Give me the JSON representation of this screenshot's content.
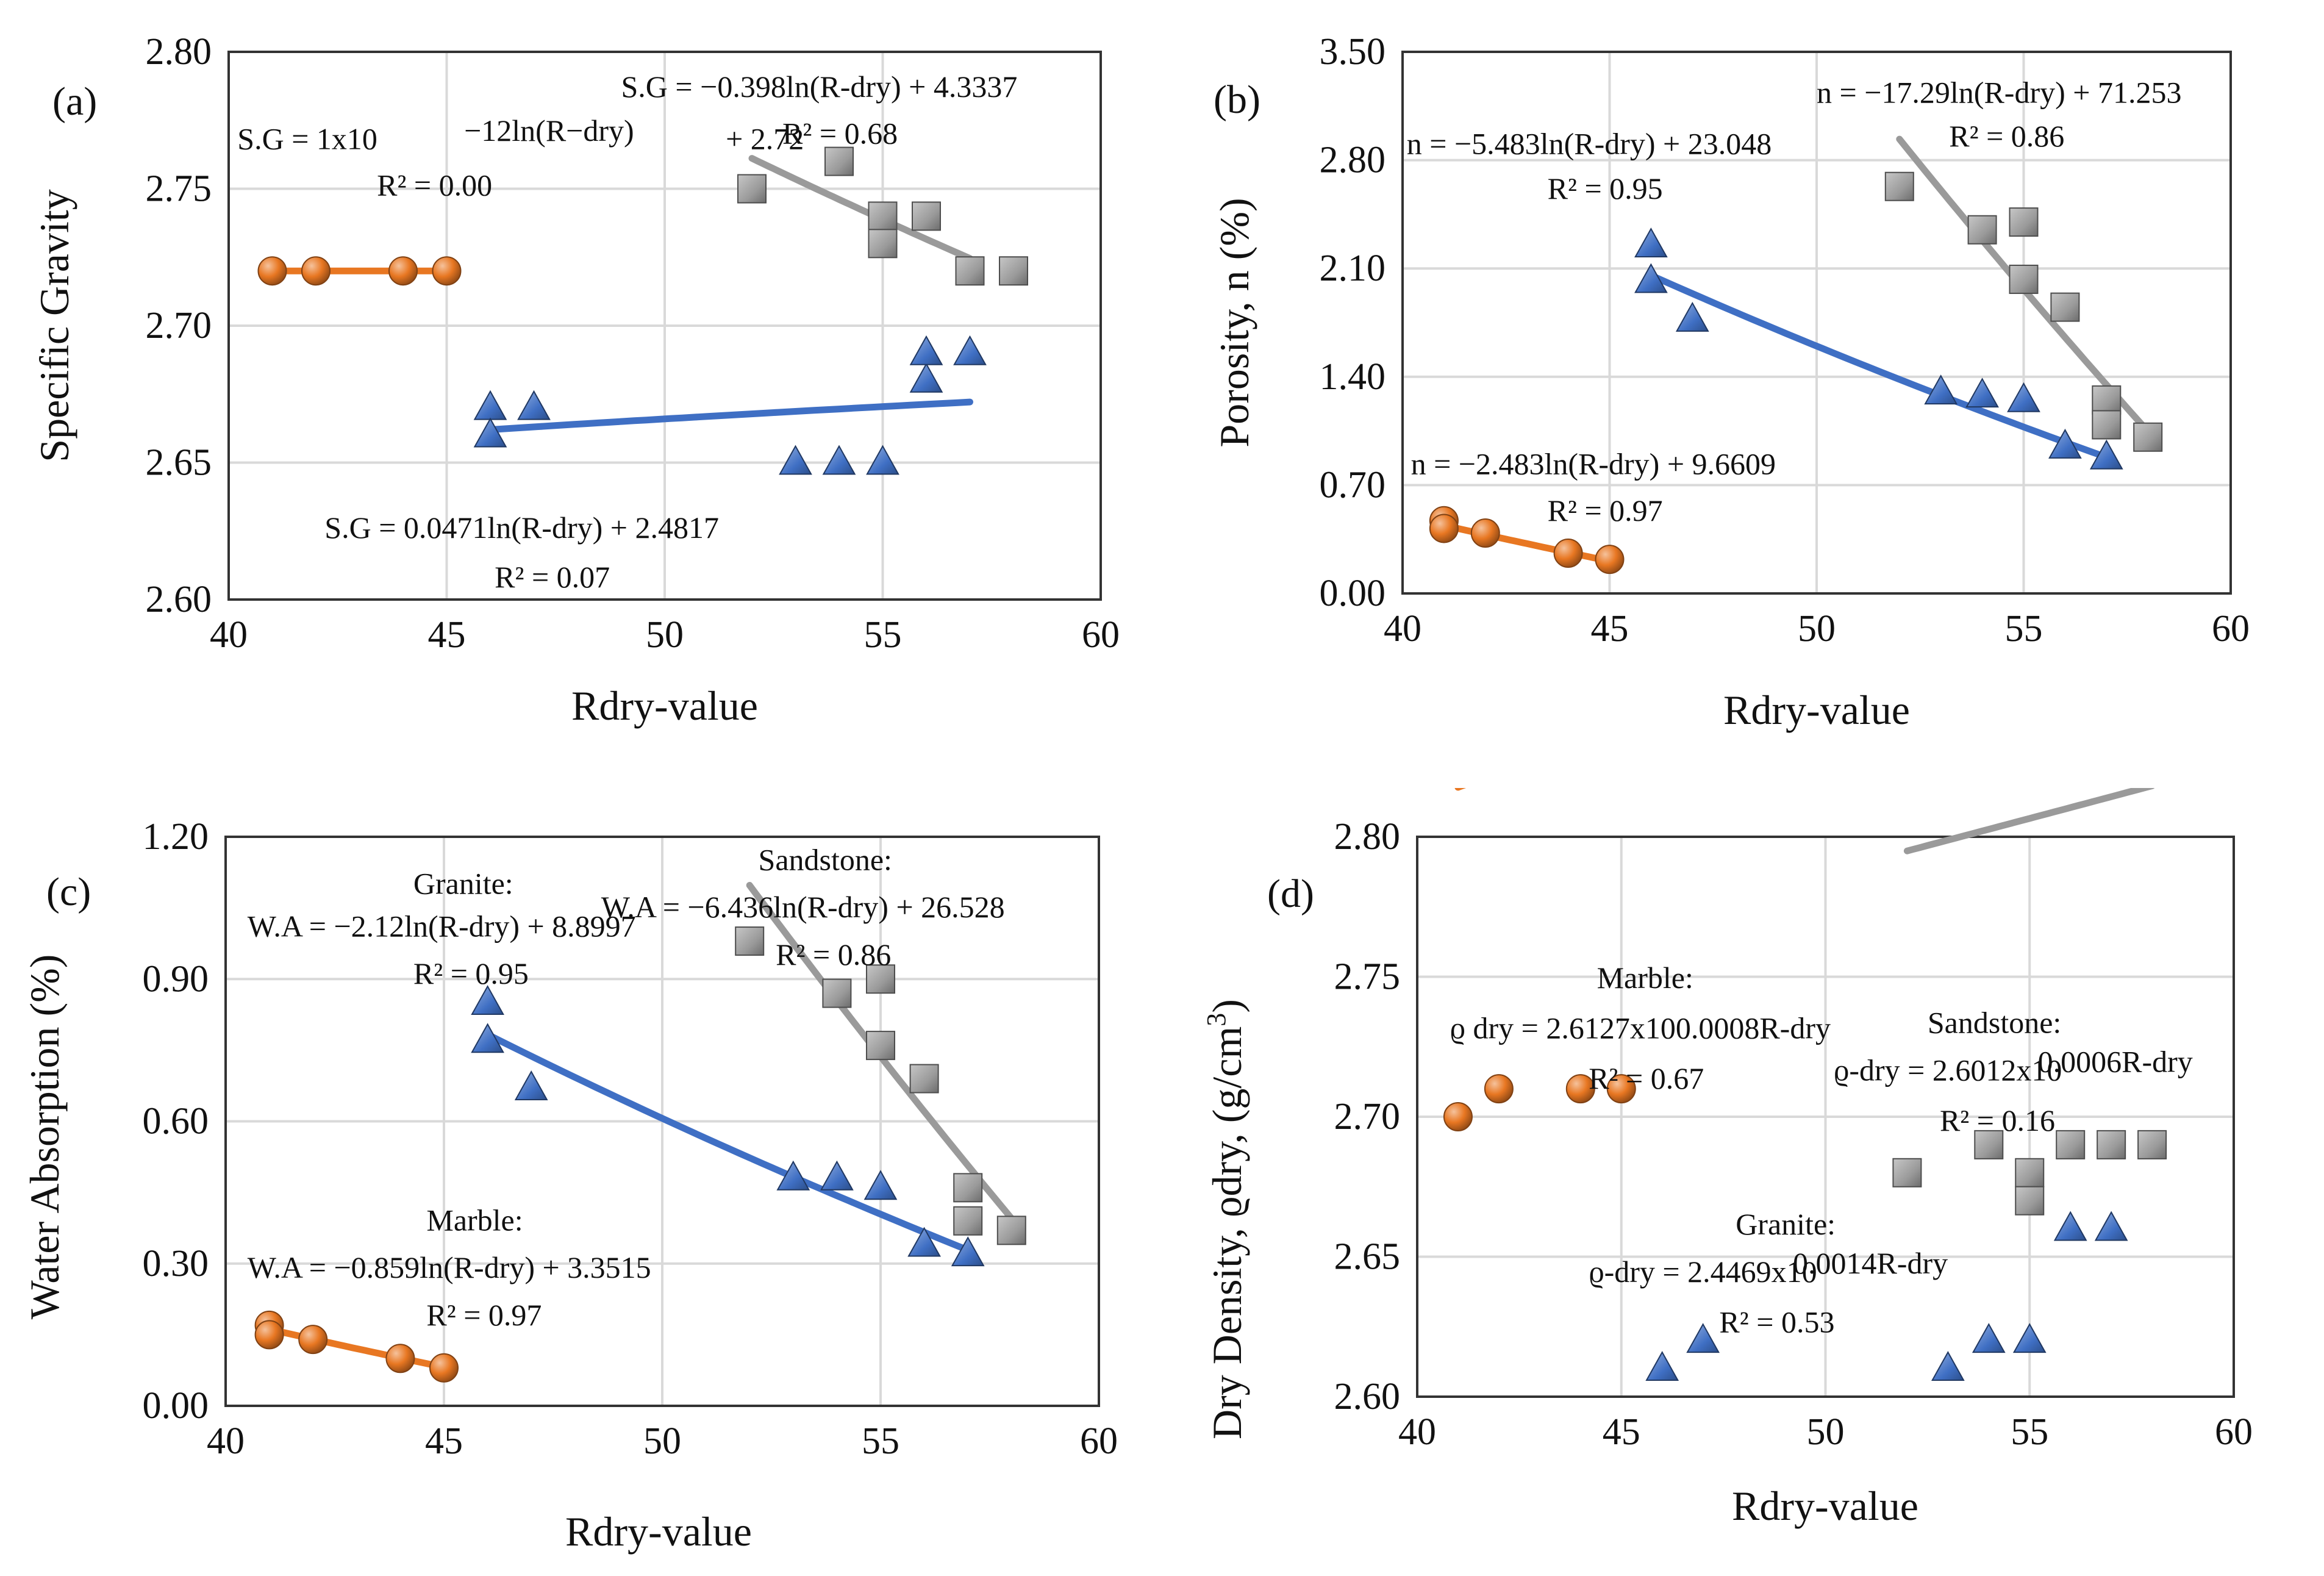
{
  "colors": {
    "marble": "#e87722",
    "granite": "#3f6fc4",
    "sandstone": "#9a9a9a",
    "grid": "#d9d9d9"
  },
  "chart_data": [
    {
      "id": "a",
      "type": "scatter",
      "panel_label": "(a)",
      "xlabel": "Rdry-value",
      "ylabel": "Specific Gravity",
      "xlim": [
        40,
        60
      ],
      "ylim": [
        2.6,
        2.8
      ],
      "xticks": [
        "40",
        "45",
        "50",
        "55",
        "60"
      ],
      "yticks": [
        "2.60",
        "2.65",
        "2.70",
        "2.75",
        "2.80"
      ],
      "series": [
        {
          "name": "Marble",
          "marker": "sphere",
          "x": [
            41,
            42,
            44,
            45
          ],
          "y": [
            2.72,
            2.72,
            2.72,
            2.72
          ],
          "trend": {
            "kind": "log",
            "a": 0,
            "b": 2.72,
            "x0": 41,
            "x1": 45
          }
        },
        {
          "name": "Granite",
          "marker": "triangle",
          "x": [
            46,
            46,
            47,
            53,
            54,
            55,
            56,
            56,
            57
          ],
          "y": [
            2.67,
            2.66,
            2.67,
            2.65,
            2.65,
            2.65,
            2.68,
            2.69,
            2.69
          ],
          "trend": {
            "kind": "log",
            "a": 0.0471,
            "b": 2.4817,
            "x0": 46,
            "x1": 57
          }
        },
        {
          "name": "Sandstone",
          "marker": "square",
          "x": [
            52,
            54,
            55,
            55,
            56,
            57,
            58
          ],
          "y": [
            2.75,
            2.76,
            2.74,
            2.73,
            2.74,
            2.72,
            2.72
          ],
          "trend": {
            "kind": "log",
            "a": -0.398,
            "b": 4.3337,
            "x0": 52,
            "x1": 57
          }
        }
      ],
      "annotations": [
        {
          "id": "m_eq_pre",
          "text": "S.G = 1x10",
          "x": 40.2,
          "y": 2.7645
        },
        {
          "id": "m_eq_sup",
          "text": "−12ln(R−dry)",
          "x": 45.4,
          "y": 2.7675
        },
        {
          "id": "m_eq_post",
          "text": " + 2.72",
          "x": 51.4,
          "y": 2.7645
        },
        {
          "id": "m_r2",
          "text": "R² = 0.00",
          "x": 43.4,
          "y": 2.7475
        },
        {
          "id": "s_eq",
          "text": "S.G = −0.398ln(R-dry) + 4.3337",
          "x": 49.0,
          "y": 2.7835
        },
        {
          "id": "s_r2",
          "text": "R² = 0.68",
          "x": 52.7,
          "y": 2.7665
        },
        {
          "id": "g_eq",
          "text": "S.G = 0.0471ln(R-dry) + 2.4817",
          "x": 42.2,
          "y": 2.6225
        },
        {
          "id": "g_r2",
          "text": "R² = 0.07",
          "x": 46.1,
          "y": 2.6045
        }
      ]
    },
    {
      "id": "b",
      "type": "scatter",
      "panel_label": "(b)",
      "xlabel": "Rdry-value",
      "ylabel": "Porosity, n  (%)",
      "xlim": [
        40,
        60
      ],
      "ylim": [
        0,
        3.5
      ],
      "xticks": [
        "40",
        "45",
        "50",
        "55",
        "60"
      ],
      "yticks": [
        "0.00",
        "0.70",
        "1.40",
        "2.10",
        "2.80",
        "3.50"
      ],
      "series": [
        {
          "name": "Marble",
          "marker": "sphere",
          "x": [
            41,
            41,
            42,
            44,
            45
          ],
          "y": [
            0.47,
            0.42,
            0.39,
            0.26,
            0.22
          ],
          "trend": {
            "kind": "log",
            "a": -2.483,
            "b": 9.6609,
            "x0": 41,
            "x1": 45
          }
        },
        {
          "name": "Granite",
          "marker": "triangle",
          "x": [
            46,
            46,
            47,
            53,
            54,
            55,
            56,
            57
          ],
          "y": [
            2.25,
            2.02,
            1.77,
            1.3,
            1.28,
            1.25,
            0.95,
            0.88
          ],
          "trend": {
            "kind": "log",
            "a": -5.483,
            "b": 23.048,
            "x0": 46,
            "x1": 57
          }
        },
        {
          "name": "Sandstone",
          "marker": "square",
          "x": [
            52,
            54,
            55,
            55,
            56,
            57,
            57,
            58
          ],
          "y": [
            2.63,
            2.35,
            2.4,
            2.03,
            1.85,
            1.25,
            1.09,
            1.01
          ],
          "trend": {
            "kind": "log",
            "a": -17.29,
            "b": 71.253,
            "x0": 52,
            "x1": 58
          }
        }
      ],
      "annotations": [
        {
          "id": "g_eq",
          "text": "n = −5.483ln(R-dry) + 23.048",
          "x": 40.1,
          "y": 2.84
        },
        {
          "id": "g_r2",
          "text": "R² = 0.95",
          "x": 43.5,
          "y": 2.55
        },
        {
          "id": "s_eq",
          "text": "n = −17.29ln(R-dry) + 71.253",
          "x": 50.0,
          "y": 3.17
        },
        {
          "id": "s_r2",
          "text": "R² = 0.86",
          "x": 53.2,
          "y": 2.89
        },
        {
          "id": "m_eq",
          "text": "n = −2.483ln(R-dry) + 9.6609",
          "x": 40.2,
          "y": 0.77
        },
        {
          "id": "m_r2",
          "text": "R² = 0.97",
          "x": 43.5,
          "y": 0.47
        }
      ]
    },
    {
      "id": "c",
      "type": "scatter",
      "panel_label": "(c)",
      "xlabel": "Rdry-value",
      "ylabel": "Water Absorption (%)",
      "xlim": [
        40,
        60
      ],
      "ylim": [
        0,
        1.2
      ],
      "xticks": [
        "40",
        "45",
        "50",
        "55",
        "60"
      ],
      "yticks": [
        "0.00",
        "0.30",
        "0.60",
        "0.90",
        "1.20"
      ],
      "series": [
        {
          "name": "Marble",
          "marker": "sphere",
          "x": [
            41,
            41,
            42,
            44,
            45
          ],
          "y": [
            0.17,
            0.15,
            0.14,
            0.1,
            0.08
          ],
          "trend": {
            "kind": "log",
            "a": -0.859,
            "b": 3.3515,
            "x0": 41,
            "x1": 45
          }
        },
        {
          "name": "Granite",
          "marker": "triangle",
          "x": [
            46,
            46,
            47,
            53,
            54,
            55,
            56,
            57
          ],
          "y": [
            0.85,
            0.77,
            0.67,
            0.48,
            0.48,
            0.46,
            0.34,
            0.32
          ],
          "trend": {
            "kind": "log",
            "a": -2.12,
            "b": 8.8997,
            "x0": 46,
            "x1": 57
          }
        },
        {
          "name": "Sandstone",
          "marker": "square",
          "x": [
            52,
            54,
            55,
            55,
            56,
            57,
            57,
            58
          ],
          "y": [
            0.98,
            0.87,
            0.9,
            0.76,
            0.69,
            0.46,
            0.39,
            0.37
          ],
          "trend": {
            "kind": "log",
            "a": -6.436,
            "b": 26.528,
            "x0": 52,
            "x1": 58
          }
        }
      ],
      "annotations": [
        {
          "id": "g_title",
          "text": "Granite:",
          "x": 44.3,
          "y": 1.08
        },
        {
          "id": "g_eq",
          "text": "W.A = −2.12ln(R-dry) + 8.8997",
          "x": 40.5,
          "y": 0.99
        },
        {
          "id": "g_r2",
          "text": "R² = 0.95",
          "x": 44.3,
          "y": 0.89
        },
        {
          "id": "s_title",
          "text": "Sandstone:",
          "x": 52.2,
          "y": 1.13
        },
        {
          "id": "s_eq",
          "text": "W.A = −6.436ln(R-dry) + 26.528",
          "x": 48.6,
          "y": 1.03
        },
        {
          "id": "s_r2",
          "text": "R² = 0.86",
          "x": 52.6,
          "y": 0.93
        },
        {
          "id": "m_title",
          "text": "Marble:",
          "x": 44.6,
          "y": 0.37
        },
        {
          "id": "m_eq",
          "text": "W.A = −0.859ln(R-dry) + 3.3515",
          "x": 40.5,
          "y": 0.27
        },
        {
          "id": "m_r2",
          "text": "R² = 0.97",
          "x": 44.6,
          "y": 0.17
        }
      ]
    },
    {
      "id": "d",
      "type": "scatter",
      "panel_label": "(d)",
      "xlabel": "Rdry-value",
      "ylabel": "Dry Density, ϱdry, (g/cm",
      "ylabel_sup": "3",
      "ylabel_end": ")",
      "xlim": [
        40,
        60
      ],
      "ylim": [
        2.6,
        2.8
      ],
      "xticks": [
        "40",
        "45",
        "50",
        "55",
        "60"
      ],
      "yticks": [
        "2.60",
        "2.65",
        "2.70",
        "2.75",
        "2.80"
      ],
      "series": [
        {
          "name": "Marble",
          "marker": "sphere",
          "x": [
            41,
            42,
            44,
            45
          ],
          "y": [
            2.7,
            2.71,
            2.71,
            2.71
          ],
          "trend": {
            "kind": "exp",
            "a": 2.6127,
            "k": 0.0008,
            "x0": 41,
            "x1": 45
          }
        },
        {
          "name": "Granite",
          "marker": "triangle",
          "x": [
            46,
            47,
            53,
            54,
            55,
            56,
            57
          ],
          "y": [
            2.61,
            2.62,
            2.61,
            2.62,
            2.62,
            2.66,
            2.66
          ],
          "trend": {
            "kind": "exp",
            "a": 2.4469,
            "k": 0.0014,
            "x0": 46,
            "x1": 57
          }
        },
        {
          "name": "Sandstone",
          "marker": "square",
          "x": [
            52,
            54,
            55,
            55,
            56,
            57,
            58
          ],
          "y": [
            2.68,
            2.69,
            2.68,
            2.67,
            2.69,
            2.69,
            2.69
          ],
          "trend": {
            "kind": "exp",
            "a": 2.6012,
            "k": 0.0006,
            "x0": 52,
            "x1": 58
          }
        }
      ],
      "annotations": [
        {
          "id": "m_title",
          "text": "Marble:",
          "x": 44.4,
          "y": 2.746
        },
        {
          "id": "m_eq",
          "text": "ϱ dry = 2.6127x100.0008R-dry",
          "x": 40.8,
          "y": 2.728
        },
        {
          "id": "m_r2",
          "text": "R² = 0.67",
          "x": 44.2,
          "y": 2.71
        },
        {
          "id": "s_title",
          "text": "Sandstone:",
          "x": 52.5,
          "y": 2.73
        },
        {
          "id": "s_eq_pre",
          "text": "ϱ-dry = 2.6012x10",
          "x": 50.2,
          "y": 2.713
        },
        {
          "id": "s_eq_sup",
          "text": "0.0006R-dry",
          "x": 55.2,
          "y": 2.716
        },
        {
          "id": "s_r2",
          "text": "R² = 0.16",
          "x": 52.8,
          "y": 2.695
        },
        {
          "id": "g_title",
          "text": "Granite:",
          "x": 47.8,
          "y": 2.658
        },
        {
          "id": "g_eq_pre",
          "text": "ϱ-dry = 2.4469x10",
          "x": 44.2,
          "y": 2.641
        },
        {
          "id": "g_eq_sup",
          "text": "0.0014R-dry",
          "x": 49.2,
          "y": 2.644
        },
        {
          "id": "g_r2",
          "text": "R² = 0.53",
          "x": 47.4,
          "y": 2.623
        }
      ]
    }
  ]
}
